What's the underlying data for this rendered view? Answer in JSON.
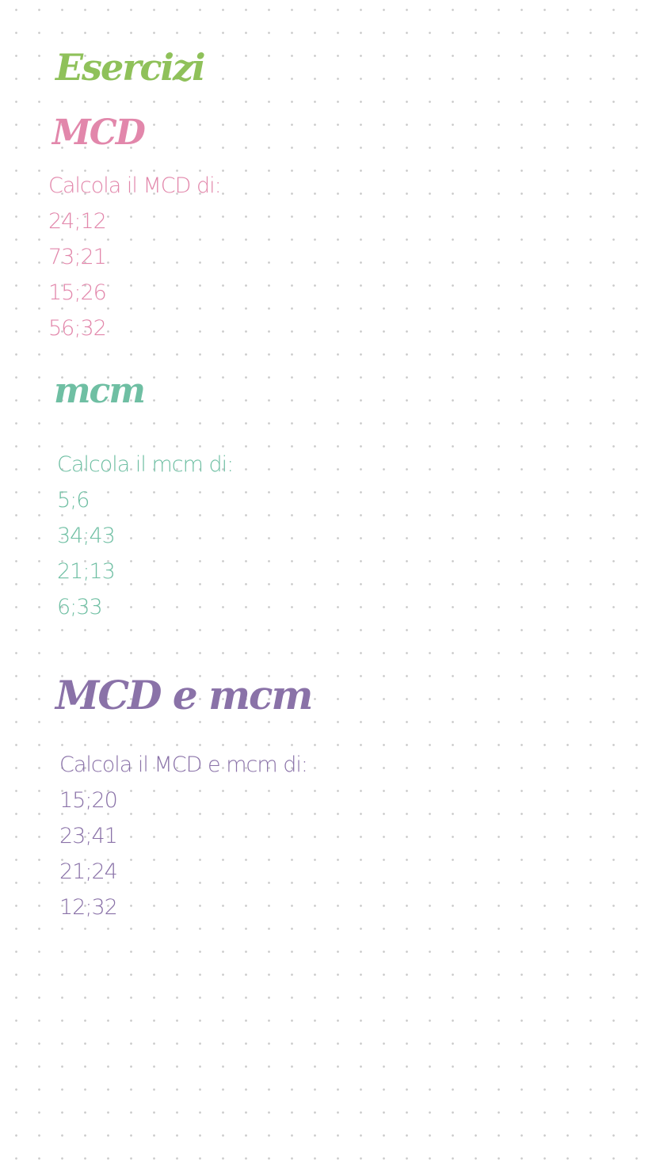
{
  "title": {
    "text": "Esercizi",
    "color": "#8fc15a"
  },
  "sections": [
    {
      "heading": "MCD",
      "color": "#e287ab",
      "prompt": "Calcola il MCD di:",
      "items": [
        "24;12",
        "73;21",
        "15;26",
        "56;32"
      ]
    },
    {
      "heading": "mcm",
      "color": "#6fbfa3",
      "prompt": "Calcola il mcm di:",
      "items": [
        "5;6",
        "34;43",
        "21;13",
        "6;33"
      ]
    },
    {
      "heading": "MCD e mcm",
      "color": "#8a72a8",
      "prompt": "Calcola il MCD e mcm di:",
      "items": [
        "15;20",
        "23;41",
        "21;24",
        "12;32"
      ]
    }
  ]
}
